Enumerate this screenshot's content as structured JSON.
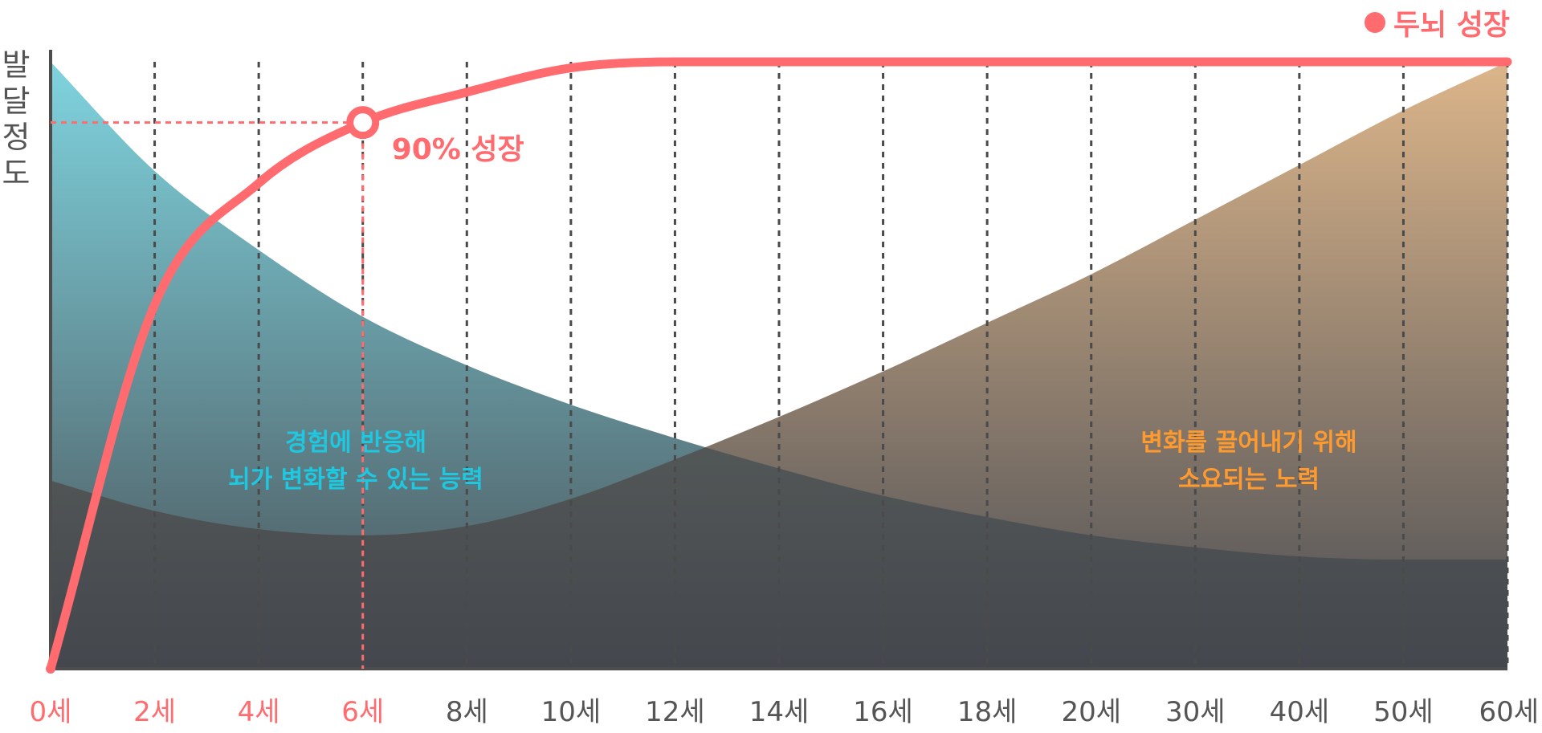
{
  "chart_data": {
    "type": "area",
    "y_axis_label_chars": [
      "발",
      "달",
      "정",
      "도"
    ],
    "categories": [
      "0세",
      "2세",
      "4세",
      "6세",
      "8세",
      "10세",
      "12세",
      "14세",
      "16세",
      "18세",
      "20세",
      "30세",
      "40세",
      "50세",
      "60세"
    ],
    "highlighted_categories": [
      "0세",
      "2세",
      "4세",
      "6세"
    ],
    "ylim": [
      0,
      100
    ],
    "grid": "vertical dashed lines at each category",
    "legend": {
      "position": "top-right",
      "label": "두뇌 성장"
    },
    "series": [
      {
        "name": "두뇌 성장",
        "kind": "line",
        "color": "#ff6b6f",
        "values": [
          0,
          60,
          80,
          90,
          95,
          99,
          100,
          100,
          100,
          100,
          100,
          100,
          100,
          100,
          100
        ]
      },
      {
        "name": "",
        "kind": "area",
        "label_lines": [
          "경험에 반응해",
          "뇌가 변화할 수 있는 능력"
        ],
        "label_color": "#1ec8e0",
        "color_top": "#7fd4df",
        "color_bottom": "#4a5056",
        "values": [
          100,
          82,
          69,
          58,
          50,
          43.5,
          38,
          33,
          28.5,
          25,
          22,
          20,
          18.5,
          18,
          18
        ]
      },
      {
        "name": "",
        "kind": "area",
        "label_lines": [
          "변화를 끌어내기 위해",
          "소요되는 노력"
        ],
        "label_color": "#ff9a2e",
        "color_top": "#dcb58a",
        "color_bottom": "#4a4d54",
        "values": [
          31,
          26,
          23,
          22,
          23.5,
          28,
          34.5,
          41.5,
          49,
          57,
          65,
          74,
          83,
          92,
          100
        ]
      }
    ],
    "annotations": [
      {
        "text": "90% 성장",
        "category": "6세",
        "value": 90
      }
    ]
  }
}
